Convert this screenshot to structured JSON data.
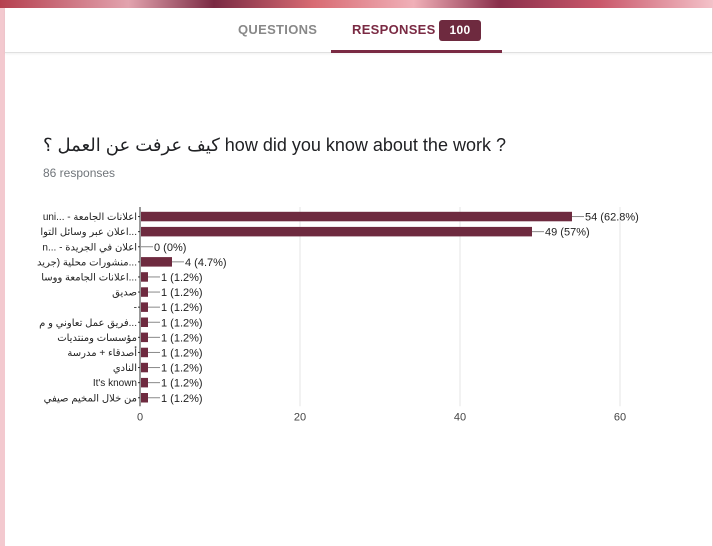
{
  "tabs": {
    "questions_label": "QUESTIONS",
    "responses_label": "RESPONSES",
    "responses_count": "100"
  },
  "question": {
    "title": "كيف عرفت عن العمل ؟ how did you know about the work ?",
    "responses_text": "86 responses"
  },
  "colors": {
    "bar": "#6e2a3f",
    "accent": "#7a2a43",
    "background": "#f3c9cf"
  },
  "chart_data": {
    "type": "bar",
    "orientation": "horizontal",
    "categories": [
      "uni... - اعلانات الجامعة",
      "اعلان عبر وسائل التوا...",
      "n... - اعلان في الجريدة",
      "منشورات محلية (جريد...",
      "اعلانات الجامعة ووسا...",
      "صديق",
      "-",
      "فريق عمل تعاوني و م...",
      "مؤسسات ومنتديات",
      "أصدقاء + مدرسة",
      "النادي",
      "It's known",
      "من خلال المخيم صيفي"
    ],
    "values": [
      54,
      49,
      0,
      4,
      1,
      1,
      1,
      1,
      1,
      1,
      1,
      1,
      1
    ],
    "data_labels": [
      "54 (62.8%)",
      "49 (57%)",
      "0 (0%)",
      "4 (4.7%)",
      "1 (1.2%)",
      "1 (1.2%)",
      "1 (1.2%)",
      "1 (1.2%)",
      "1 (1.2%)",
      "1 (1.2%)",
      "1 (1.2%)",
      "1 (1.2%)",
      "1 (1.2%)"
    ],
    "x_ticks": [
      0,
      20,
      40,
      60
    ],
    "xlim": [
      0,
      60
    ],
    "grid": true,
    "legend": "none"
  }
}
